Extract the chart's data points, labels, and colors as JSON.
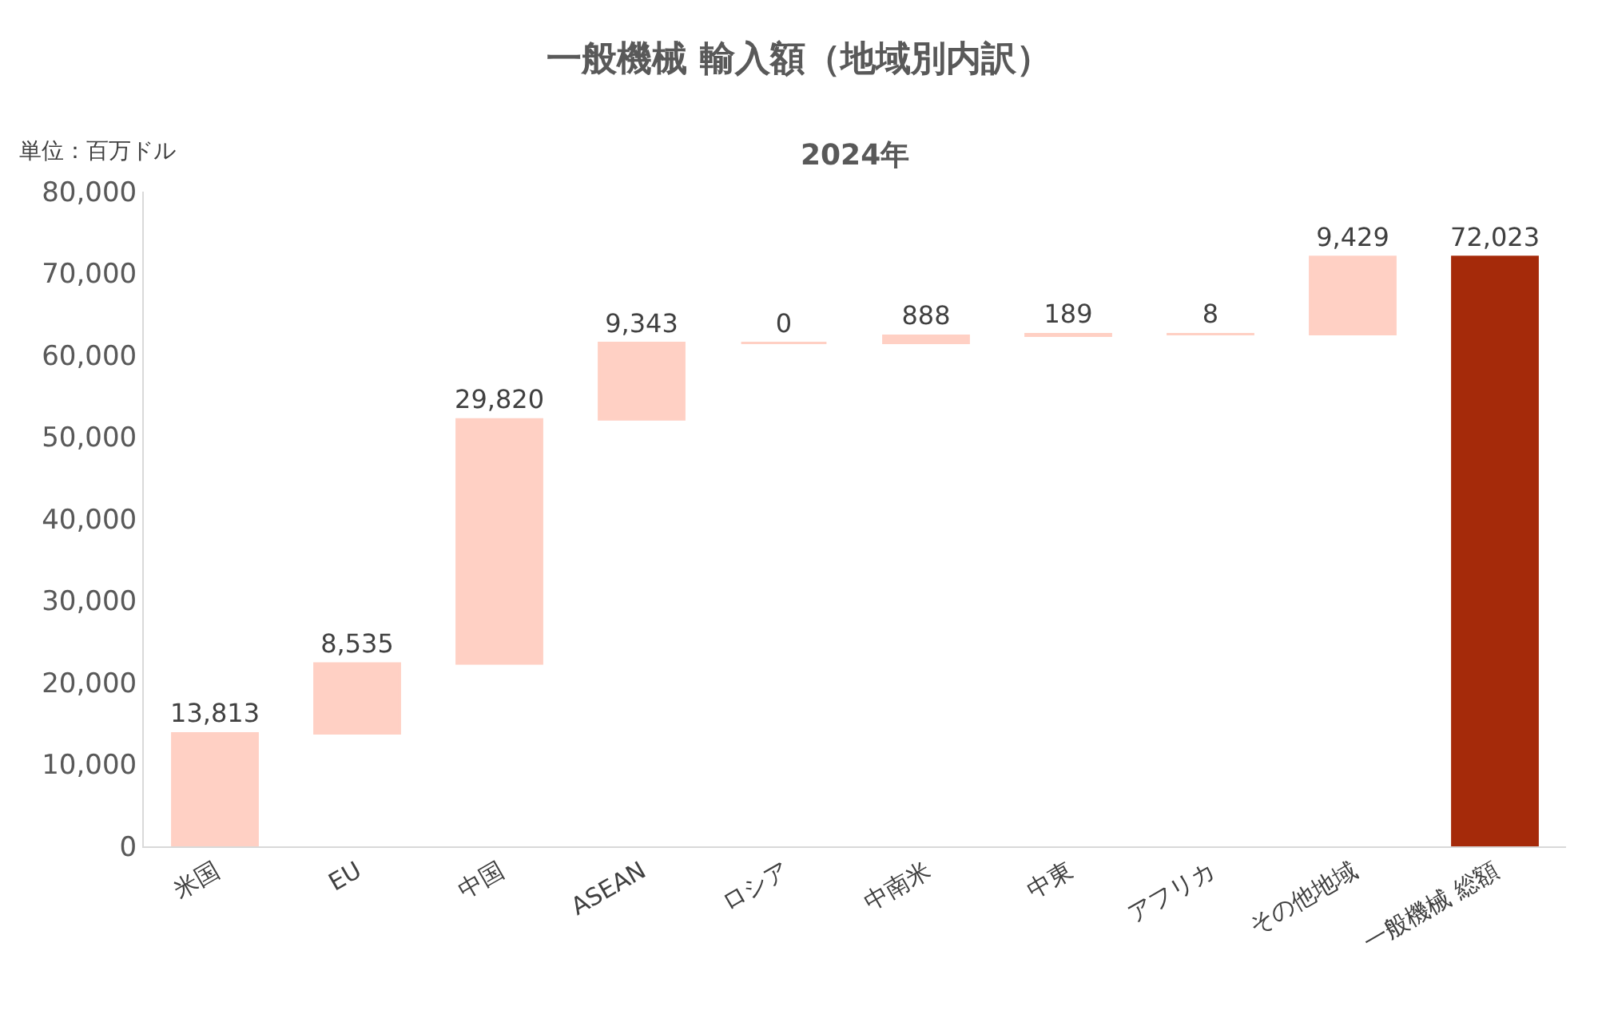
{
  "chart_data": {
    "type": "bar",
    "title": "一般機械 輸入額（地域別内訳）",
    "subtitle": "2024年",
    "annotations": [
      "単位：百万ドル"
    ],
    "categories": [
      "米国",
      "EU",
      "中国",
      "ASEAN",
      "ロシア",
      "中南米",
      "中東",
      "アフリカ",
      "その他地域",
      "一般機械 総額"
    ],
    "values": [
      13813,
      8535,
      29820,
      9343,
      0,
      888,
      189,
      8,
      9429,
      72023
    ],
    "base": [
      0,
      13813,
      22348,
      52168,
      61511,
      61511,
      62399,
      62588,
      62596,
      0
    ],
    "colors": [
      "#ffd0c4",
      "#ffd0c4",
      "#ffd0c4",
      "#ffd0c4",
      "#ffd0c4",
      "#ffd0c4",
      "#ffd0c4",
      "#ffd0c4",
      "#ffd0c4",
      "#a52a0a"
    ],
    "value_labels": [
      "13,813",
      "8,535",
      "29,820",
      "9,343",
      "0",
      "888",
      "189",
      "8",
      "9,429",
      "72,023"
    ],
    "ylim": [
      0,
      80000
    ],
    "yticks": [
      {
        "value": 0,
        "label": "0"
      },
      {
        "value": 10000,
        "label": "10,000"
      },
      {
        "value": 20000,
        "label": "20,000"
      },
      {
        "value": 30000,
        "label": "30,000"
      },
      {
        "value": 40000,
        "label": "40,000"
      },
      {
        "value": 50000,
        "label": "50,000"
      },
      {
        "value": 60000,
        "label": "60,000"
      },
      {
        "value": 70000,
        "label": "70,000"
      },
      {
        "value": 80000,
        "label": "80,000"
      }
    ],
    "legend": false
  }
}
